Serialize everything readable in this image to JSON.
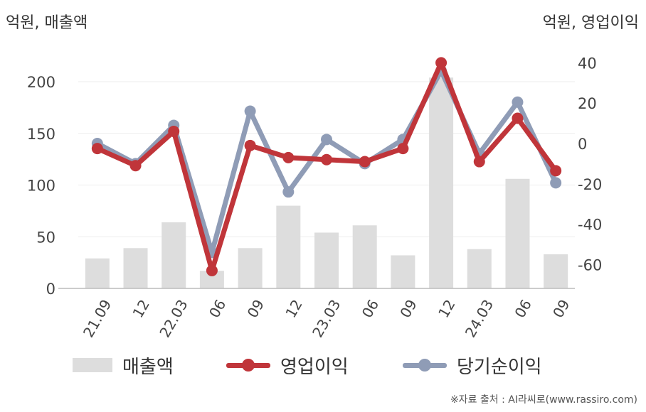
{
  "units": {
    "left": "억원, 매출액",
    "right": "억원, 영업이익"
  },
  "source": "※자료 출처 : AI라씨로(www.rassiro.com)",
  "colors": {
    "bar": "#dddddd",
    "operating_profit": "#c0353a",
    "net_profit": "#8f9cb6",
    "axis": "#bbbbbb",
    "grid": "#eeeeee"
  },
  "chart_data": {
    "type": "bar+line",
    "categories": [
      "21.09",
      "12",
      "22.03",
      "06",
      "09",
      "12",
      "23.03",
      "06",
      "09",
      "12",
      "24.03",
      "06",
      "09"
    ],
    "left_axis": {
      "ticks": [
        0,
        50,
        100,
        150,
        200
      ],
      "range": [
        0,
        230
      ]
    },
    "right_axis": {
      "ticks": [
        40,
        20,
        0,
        -20,
        -40,
        -60
      ],
      "range": [
        -72,
        42
      ]
    },
    "grid": true,
    "legend_position": "bottom",
    "series": [
      {
        "name": "매출액",
        "type": "bar",
        "axis": "left",
        "values": [
          29,
          39,
          64,
          17,
          39,
          80,
          54,
          61,
          32,
          204,
          38,
          106,
          33
        ]
      },
      {
        "name": "영업이익",
        "type": "line",
        "axis": "right",
        "values": [
          -2.5,
          -11,
          6,
          -63,
          -1,
          -7,
          -8,
          -9,
          -2.5,
          40,
          -9,
          12.5,
          -13.5
        ]
      },
      {
        "name": "당기순이익",
        "type": "line",
        "axis": "right",
        "values": [
          0,
          -10,
          9,
          -54,
          16,
          -24,
          2,
          -10,
          2,
          36,
          -5,
          20.5,
          -19.5
        ]
      }
    ]
  }
}
